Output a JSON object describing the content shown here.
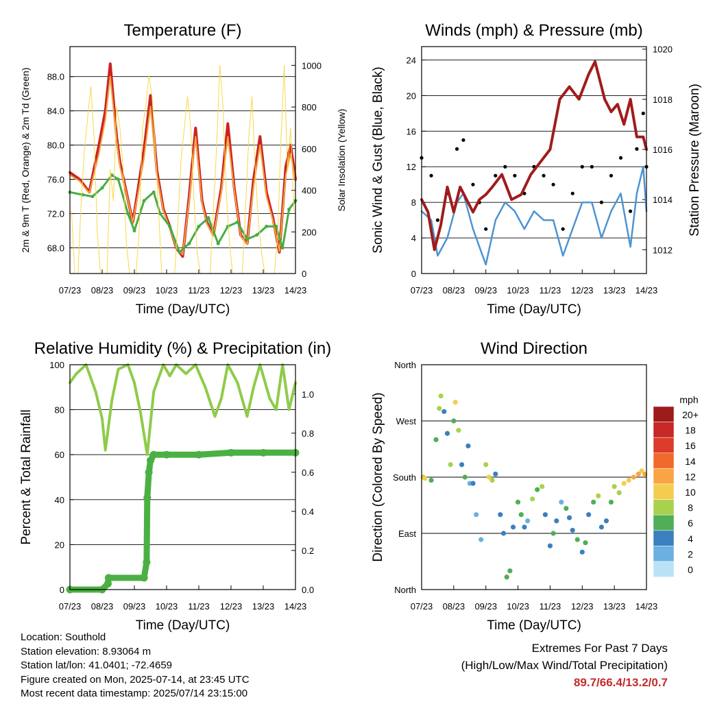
{
  "chart_data": [
    {
      "type": "line",
      "title": "Temperature (F)",
      "xlabel": "Time (Day/UTC)",
      "ylabel": "2m & 9m T (Red, Orange) & 2m Td (Green)",
      "ylabel_right": "Solar Insolation (Yellow)",
      "x_ticks": [
        "07/23",
        "08/23",
        "09/23",
        "10/23",
        "11/23",
        "12/23",
        "13/23",
        "14/23"
      ],
      "y_ticks": [
        "68.0",
        "72.0",
        "76.0",
        "80.0",
        "84.0",
        "88.0"
      ],
      "ylim": [
        65,
        91.5
      ],
      "y_right_ticks": [
        "0",
        "200",
        "400",
        "600",
        "800",
        "1000"
      ],
      "ylim_right": [
        0,
        1090
      ],
      "grid": true,
      "series": [
        {
          "key": "t2m",
          "color": "#cc2222",
          "x": [
            0,
            0.3,
            0.6,
            0.9,
            1.1,
            1.25,
            1.45,
            1.55,
            1.75,
            1.95,
            2.1,
            2.3,
            2.5,
            2.7,
            2.9,
            3.1,
            3.3,
            3.5,
            3.7,
            3.9,
            4.1,
            4.25,
            4.45,
            4.7,
            4.9,
            5.1,
            5.3,
            5.5,
            5.7,
            5.9,
            6.1,
            6.3,
            6.5,
            6.7,
            6.85,
            7.0
          ],
          "values": [
            76.8,
            76,
            74.5,
            80,
            84,
            89.5,
            81,
            78,
            74.5,
            71,
            74.5,
            79.5,
            85.8,
            77,
            72.5,
            70.5,
            68,
            67,
            74,
            82,
            73.5,
            71,
            69.5,
            75,
            82.5,
            75,
            69.5,
            68.5,
            76,
            81,
            74.5,
            71.5,
            67.5,
            77.5,
            80,
            76
          ]
        },
        {
          "key": "t9m",
          "color": "#f4a340",
          "x": [
            0,
            0.3,
            0.6,
            0.9,
            1.1,
            1.25,
            1.45,
            1.55,
            1.75,
            1.95,
            2.1,
            2.3,
            2.5,
            2.7,
            2.9,
            3.1,
            3.3,
            3.5,
            3.7,
            3.9,
            4.1,
            4.25,
            4.45,
            4.7,
            4.9,
            5.1,
            5.3,
            5.5,
            5.7,
            5.9,
            6.1,
            6.3,
            6.5,
            6.7,
            6.85,
            7.0
          ],
          "values": [
            76.5,
            75.8,
            74.4,
            79,
            83,
            88,
            80.5,
            77.5,
            74.4,
            71,
            74,
            78.5,
            84.5,
            76.5,
            72.3,
            70.3,
            68,
            67.2,
            73.5,
            81,
            73.2,
            70.8,
            69.4,
            74.5,
            81,
            74.7,
            69.4,
            68.4,
            75.2,
            80,
            74,
            71.2,
            67.6,
            76.5,
            79,
            75.8
          ]
        },
        {
          "key": "td2m",
          "color": "#46ad43",
          "x": [
            0,
            0.4,
            0.7,
            1.0,
            1.3,
            1.5,
            1.8,
            2.0,
            2.3,
            2.6,
            2.8,
            3.1,
            3.4,
            3.7,
            4.0,
            4.3,
            4.6,
            4.9,
            5.2,
            5.5,
            5.8,
            6.1,
            6.4,
            6.6,
            6.8,
            7.0
          ],
          "values": [
            74.5,
            74.2,
            74,
            75,
            76.5,
            76,
            72,
            70,
            73.5,
            74.5,
            72,
            70.5,
            67.5,
            68.5,
            70.5,
            71.5,
            68.5,
            70.5,
            71,
            69,
            69.5,
            70.5,
            70.5,
            68,
            72.5,
            73.5
          ]
        },
        {
          "key": "solar",
          "color": "#f6d84a",
          "axis": "right",
          "x": [
            0.05,
            0.15,
            0.25,
            0.35,
            0.45,
            0.55,
            0.65,
            0.75,
            0.85,
            0.95,
            1.05,
            1.15,
            1.25,
            1.35,
            1.45,
            1.55,
            1.65,
            1.75,
            1.85,
            1.95,
            2.05,
            2.15,
            2.25,
            2.35,
            2.45,
            2.55,
            2.65,
            2.75,
            2.85,
            2.95,
            3.05,
            3.15,
            3.25,
            3.35,
            3.45,
            3.55,
            3.65,
            3.75,
            3.85,
            3.95,
            4.05,
            4.15,
            4.25,
            4.35,
            4.45,
            4.55,
            4.65,
            4.75,
            4.85,
            4.95,
            5.05,
            5.15,
            5.25,
            5.35,
            5.45,
            5.55,
            5.65,
            5.75,
            5.85,
            5.95,
            6.05,
            6.15,
            6.25,
            6.35,
            6.45,
            6.55,
            6.65,
            6.75,
            6.85,
            6.95
          ],
          "values": [
            300,
            0,
            0,
            350,
            600,
            750,
            900,
            650,
            200,
            0,
            0,
            0,
            500,
            350,
            800,
            700,
            500,
            150,
            0,
            0,
            0,
            200,
            700,
            800,
            950,
            850,
            600,
            300,
            0,
            0,
            0,
            0,
            0,
            250,
            550,
            700,
            850,
            700,
            350,
            100,
            0,
            0,
            0,
            0,
            300,
            600,
            1000,
            800,
            400,
            150,
            0,
            0,
            0,
            0,
            300,
            650,
            850,
            500,
            250,
            100,
            0,
            0,
            0,
            0,
            200,
            650,
            1000,
            500,
            700,
            300
          ]
        }
      ]
    },
    {
      "type": "line",
      "title": "Winds (mph) & Pressure (mb)",
      "xlabel": "Time (Day/UTC)",
      "ylabel": "Sonic Wind & Gust (Blue, Black)",
      "ylabel_right": "Station Pressure (Maroon)",
      "x_ticks": [
        "07/23",
        "08/23",
        "09/23",
        "10/23",
        "11/23",
        "12/23",
        "13/23",
        "14/23"
      ],
      "y_ticks": [
        "0",
        "4",
        "8",
        "12",
        "16",
        "20",
        "24"
      ],
      "ylim": [
        0,
        25.5
      ],
      "y_right_ticks": [
        "1012",
        "1014",
        "1016",
        "1018",
        "1020"
      ],
      "ylim_right": [
        1011.05,
        1020.1
      ],
      "grid": true,
      "series": [
        {
          "key": "wind",
          "color": "#4d94d1",
          "x": [
            0,
            0.3,
            0.5,
            0.8,
            1.1,
            1.3,
            1.6,
            1.8,
            2.0,
            2.3,
            2.6,
            2.9,
            3.2,
            3.5,
            3.8,
            4.1,
            4.4,
            4.7,
            5.0,
            5.3,
            5.6,
            5.9,
            6.2,
            6.5,
            6.7,
            6.9,
            7.0
          ],
          "values": [
            7,
            6,
            2,
            4,
            8,
            9,
            5,
            3,
            1,
            6,
            8,
            7,
            5,
            7,
            6,
            6,
            2,
            5,
            8,
            8,
            4,
            7,
            9,
            3,
            9,
            12,
            7
          ]
        },
        {
          "key": "gust",
          "color": "#000000",
          "x": [
            0,
            0.3,
            0.5,
            0.8,
            1.1,
            1.3,
            1.6,
            1.8,
            2.0,
            2.3,
            2.6,
            2.9,
            3.2,
            3.5,
            3.8,
            4.1,
            4.4,
            4.7,
            5.0,
            5.3,
            5.6,
            5.9,
            6.2,
            6.5,
            6.7,
            6.9,
            7.0
          ],
          "values": [
            13,
            11,
            6,
            9,
            14,
            15,
            10,
            8,
            5,
            11,
            12,
            11,
            9,
            12,
            11,
            10,
            5,
            9,
            12,
            12,
            8,
            11,
            13,
            7,
            14,
            18,
            12
          ]
        },
        {
          "key": "pressure",
          "color": "#a01c1c",
          "axis": "right",
          "x": [
            0,
            0.2,
            0.4,
            0.6,
            0.8,
            1.0,
            1.2,
            1.4,
            1.6,
            1.8,
            2.0,
            2.2,
            2.5,
            2.8,
            3.1,
            3.4,
            3.7,
            4.0,
            4.3,
            4.6,
            4.9,
            5.2,
            5.4,
            5.7,
            5.9,
            6.1,
            6.3,
            6.5,
            6.7,
            6.9,
            7.0
          ],
          "values": [
            1014,
            1013.5,
            1012,
            1013,
            1014.5,
            1013.5,
            1014.5,
            1014,
            1013.5,
            1014,
            1014.2,
            1014.5,
            1015,
            1014,
            1014.2,
            1015,
            1015.5,
            1016,
            1018,
            1018.5,
            1018,
            1019,
            1019.5,
            1018,
            1017.5,
            1017.8,
            1017,
            1018,
            1016.5,
            1016.5,
            1016
          ]
        }
      ]
    },
    {
      "type": "line",
      "title": "Relative Humidity (%) & Precipitation (in)",
      "xlabel": "Time (Day/UTC)",
      "ylabel": "Percent & Total Rainfall",
      "x_ticks": [
        "07/23",
        "08/23",
        "09/23",
        "10/23",
        "11/23",
        "12/23",
        "13/23",
        "14/23"
      ],
      "y_ticks": [
        "0",
        "20",
        "40",
        "60",
        "80",
        "100"
      ],
      "ylim": [
        0,
        100
      ],
      "y_right_ticks": [
        "0.0",
        "0.2",
        "0.4",
        "0.6",
        "0.8",
        "1.0"
      ],
      "ylim_right": [
        0,
        1.15
      ],
      "grid": true,
      "series": [
        {
          "key": "rh",
          "color": "#8fcb4a",
          "x": [
            0,
            0.2,
            0.5,
            0.8,
            1.0,
            1.1,
            1.3,
            1.5,
            1.8,
            2.0,
            2.2,
            2.4,
            2.6,
            2.9,
            3.1,
            3.3,
            3.6,
            3.9,
            4.2,
            4.5,
            4.7,
            4.9,
            5.2,
            5.5,
            5.7,
            5.9,
            6.2,
            6.4,
            6.6,
            6.8,
            7.0
          ],
          "values": [
            92,
            96,
            100,
            88,
            76,
            62,
            84,
            98,
            100,
            92,
            78,
            60,
            88,
            100,
            95,
            100,
            96,
            100,
            90,
            77,
            85,
            100,
            92,
            77,
            90,
            100,
            85,
            80,
            100,
            80,
            92
          ]
        },
        {
          "key": "precip",
          "color": "#4bb043",
          "axis": "right",
          "x": [
            0,
            1.0,
            1.18,
            1.2,
            2.3,
            2.38,
            2.4,
            2.45,
            2.5,
            2.6,
            3.0,
            4.0,
            5.0,
            6.0,
            7.0
          ],
          "values": [
            0.0,
            0.0,
            0.03,
            0.06,
            0.06,
            0.14,
            0.47,
            0.6,
            0.66,
            0.69,
            0.69,
            0.69,
            0.7,
            0.7,
            0.7
          ]
        }
      ]
    },
    {
      "type": "scatter",
      "title": "Wind Direction",
      "xlabel": "Time (Day/UTC)",
      "ylabel": "Direction (Colored By Speed)",
      "x_ticks": [
        "07/23",
        "08/23",
        "09/23",
        "10/23",
        "11/23",
        "12/23",
        "13/23",
        "14/23"
      ],
      "y_ticks": [
        "North",
        "East",
        "South",
        "West",
        "North"
      ],
      "ylim": [
        0,
        360
      ],
      "grid": true,
      "legend_title": "mph",
      "legend_labels": [
        "20+",
        "18",
        "16",
        "14",
        "12",
        "10",
        "8",
        "6",
        "4",
        "2",
        "0"
      ],
      "colorbar": [
        "#9e1b1b",
        "#c62828",
        "#dc3b2a",
        "#f06a2a",
        "#f9a543",
        "#f2cd4e",
        "#a8d24e",
        "#4fae57",
        "#3c7fbf",
        "#6bb0e0",
        "#b9e2f5"
      ],
      "series": [
        {
          "key": "direction",
          "x": [
            0.05,
            0.1,
            0.3,
            0.45,
            0.55,
            0.6,
            0.7,
            0.8,
            0.9,
            1.0,
            1.05,
            1.15,
            1.25,
            1.35,
            1.45,
            1.5,
            1.6,
            1.7,
            1.85,
            2.0,
            2.1,
            2.2,
            2.3,
            2.45,
            2.55,
            2.65,
            2.75,
            2.85,
            3.0,
            3.1,
            3.2,
            3.3,
            3.45,
            3.6,
            3.75,
            3.85,
            4.0,
            4.1,
            4.2,
            4.35,
            4.5,
            4.6,
            4.7,
            4.85,
            5.0,
            5.1,
            5.2,
            5.35,
            5.5,
            5.6,
            5.75,
            5.9,
            6.0,
            6.15,
            6.3,
            6.45,
            6.6,
            6.75,
            6.85,
            6.95
          ],
          "values": [
            180,
            178,
            175,
            240,
            290,
            310,
            285,
            250,
            200,
            270,
            300,
            255,
            200,
            180,
            230,
            170,
            170,
            120,
            80,
            200,
            180,
            175,
            185,
            120,
            90,
            20,
            30,
            100,
            140,
            120,
            100,
            110,
            145,
            160,
            165,
            120,
            70,
            90,
            110,
            140,
            130,
            115,
            95,
            80,
            60,
            75,
            120,
            140,
            150,
            100,
            110,
            140,
            165,
            155,
            170,
            175,
            180,
            185,
            190,
            185
          ],
          "speeds": [
            7,
            9,
            6,
            5,
            8,
            7,
            4,
            3,
            8,
            5,
            9,
            7,
            3,
            6,
            4,
            2,
            3,
            2,
            1,
            8,
            9,
            7,
            4,
            3,
            4,
            6,
            5,
            3,
            6,
            5,
            4,
            2,
            7,
            6,
            8,
            3,
            4,
            5,
            3,
            2,
            6,
            4,
            3,
            5,
            4,
            6,
            3,
            5,
            7,
            3,
            4,
            6,
            7,
            8,
            9,
            10,
            11,
            12,
            10,
            11
          ]
        }
      ]
    }
  ],
  "info": {
    "location": "Location: Southold",
    "elevation": "Station elevation: 8.93064 m",
    "latlon": "Station lat/lon: 41.0401; -72.4659",
    "created": "Figure created on Mon, 2025-07-14, at 23:45 UTC",
    "recent": "Most recent data timestamp: 2025/07/14 23:15:00"
  },
  "extremes": {
    "line1": "Extremes For Past 7 Days",
    "line2": "(High/Low/Max Wind/Total Precipitation)",
    "values": "89.7/66.4/13.2/0.7"
  }
}
